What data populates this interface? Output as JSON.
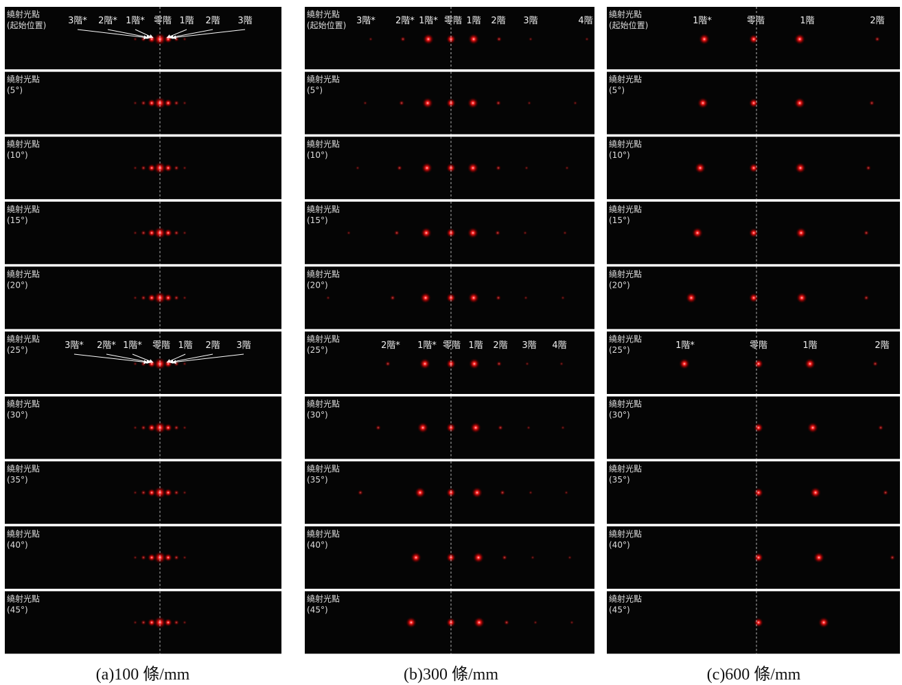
{
  "panels": [
    {
      "caption": "(a)100 條/mm",
      "rows": [
        {
          "label": "繞射光點",
          "angle": "(起始位置)",
          "orders": [
            "3階*",
            "2階*",
            "1階*",
            "零階",
            "1階",
            "2階",
            "3階"
          ]
        },
        {
          "label": "繞射光點",
          "angle": "(5°)"
        },
        {
          "label": "繞射光點",
          "angle": "(10°)"
        },
        {
          "label": "繞射光點",
          "angle": "(15°)"
        },
        {
          "label": "繞射光點",
          "angle": "(20°)"
        },
        {
          "label": "繞射光點",
          "angle": "(25°)",
          "orders": [
            "3階*",
            "2階*",
            "1階*",
            "零階",
            "1階",
            "2階",
            "3階"
          ]
        },
        {
          "label": "繞射光點",
          "angle": "(30°)"
        },
        {
          "label": "繞射光點",
          "angle": "(35°)"
        },
        {
          "label": "繞射光點",
          "angle": "(40°)"
        },
        {
          "label": "繞射光點",
          "angle": "(45°)"
        }
      ]
    },
    {
      "caption": "(b)300 條/mm",
      "rows": [
        {
          "label": "繞射光點",
          "angle": "(起始位置)",
          "orders": [
            "3階*",
            "2階*",
            "1階*",
            "零階",
            "1階",
            "2階",
            "3階",
            "4階"
          ]
        },
        {
          "label": "繞射光點",
          "angle": "(5°)"
        },
        {
          "label": "繞射光點",
          "angle": "(10°)"
        },
        {
          "label": "繞射光點",
          "angle": "(15°)"
        },
        {
          "label": "繞射光點",
          "angle": "(20°)"
        },
        {
          "label": "繞射光點",
          "angle": "(25°)",
          "orders": [
            "2階*",
            "1階*",
            "零階",
            "1階",
            "2階",
            "3階",
            "4階"
          ]
        },
        {
          "label": "繞射光點",
          "angle": "(30°)"
        },
        {
          "label": "繞射光點",
          "angle": "(35°)"
        },
        {
          "label": "繞射光點",
          "angle": "(40°)"
        },
        {
          "label": "繞射光點",
          "angle": "(45°)"
        }
      ]
    },
    {
      "caption": "(c)600 條/mm",
      "rows": [
        {
          "label": "繞射光點",
          "angle": "(起始位置)",
          "orders": [
            "1階*",
            "零階",
            "1階",
            "2階"
          ]
        },
        {
          "label": "繞射光點",
          "angle": "(5°)"
        },
        {
          "label": "繞射光點",
          "angle": "(10°)"
        },
        {
          "label": "繞射光點",
          "angle": "(15°)"
        },
        {
          "label": "繞射光點",
          "angle": "(20°)"
        },
        {
          "label": "繞射光點",
          "angle": "(25°)",
          "orders": [
            "1階*",
            "零階",
            "1階",
            "2階"
          ]
        },
        {
          "label": "繞射光點",
          "angle": "(30°)"
        },
        {
          "label": "繞射光點",
          "angle": "(35°)"
        },
        {
          "label": "繞射光點",
          "angle": "(40°)"
        },
        {
          "label": "繞射光點",
          "angle": "(45°)"
        }
      ]
    }
  ]
}
